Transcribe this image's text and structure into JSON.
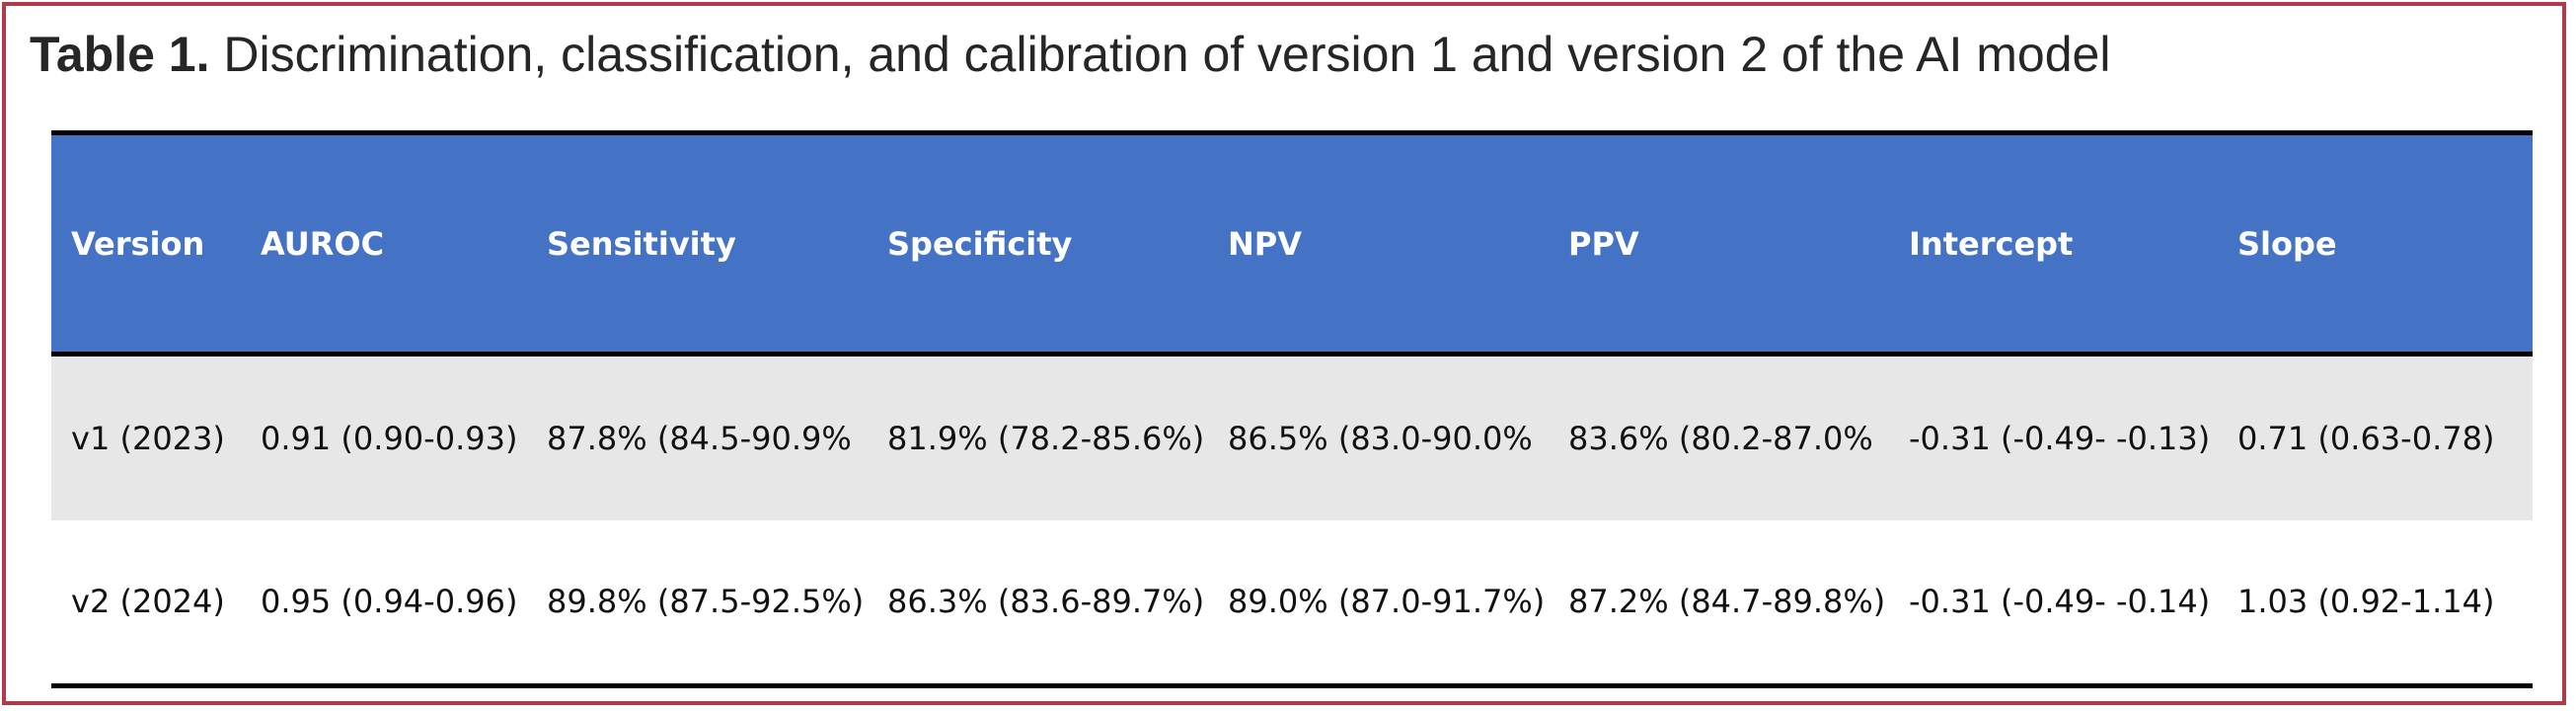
{
  "title": {
    "bold": "Table 1.",
    "text": " Discrimination, classification, and calibration of version 1 and version 2 of the AI model"
  },
  "table": {
    "headers": [
      "Version",
      "AUROC",
      "Sensitivity",
      "Specificity",
      "NPV",
      "PPV",
      "Intercept",
      "Slope"
    ],
    "rows": [
      [
        "v1 (2023)",
        "0.91 (0.90-0.93)",
        "87.8% (84.5-90.9%",
        "81.9% (78.2-85.6%)",
        "86.5% (83.0-90.0%",
        "83.6% (80.2-87.0%",
        "-0.31 (-0.49- -0.13)",
        "0.71 (0.63-0.78)"
      ],
      [
        "v2 (2024)",
        "0.95 (0.94-0.96)",
        "89.8% (87.5-92.5%)",
        "86.3% (83.6-89.7%)",
        "89.0% (87.0-91.7%)",
        "87.2% (84.7-89.8%)",
        "-0.31 (-0.49- -0.14)",
        "1.03 (0.92-1.14)"
      ]
    ]
  },
  "colors": {
    "header_bg": "#4472c4",
    "row_shaded_bg": "#e7e7e7",
    "frame_border": "#b23a48"
  }
}
